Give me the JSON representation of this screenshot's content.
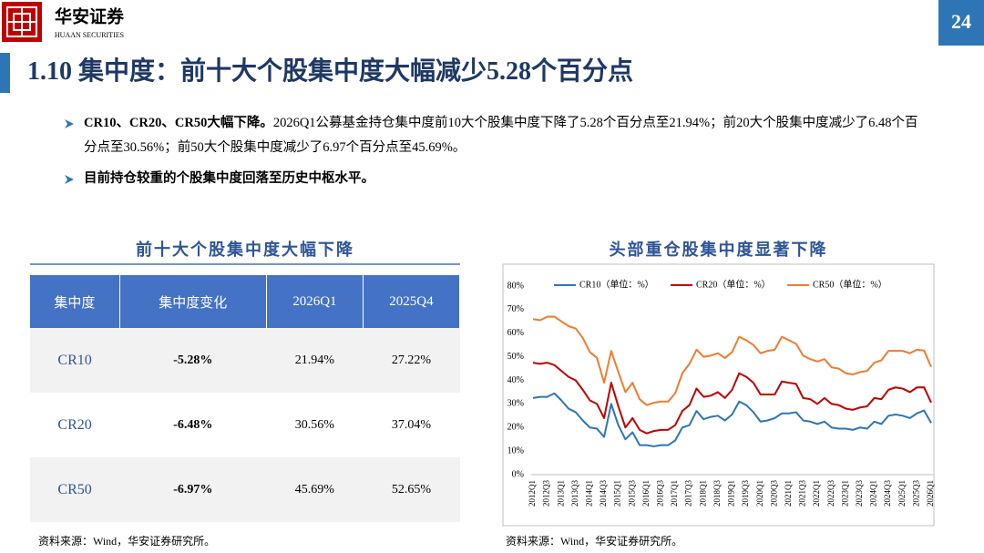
{
  "header": {
    "brand": "华安证券",
    "brand_en": "HUAAN SECURITIES",
    "page_number": "24",
    "title": "1.10 集中度：前十大个股集中度大幅减少5.28个百分点"
  },
  "bullets": [
    {
      "bold": "CR10、CR20、CR50大幅下降。",
      "text": "2026Q1公募基金持仓集中度前10大个股集中度下降了5.28个百分点至21.94%；前20大个股集中度减少了6.48个百分点至30.56%；前50大个股集中度减少了6.97个百分点至45.69%。"
    },
    {
      "bold": "目前持仓较重的个股集中度回落至历史中枢水平。"
    }
  ],
  "left_panel": {
    "title": "前十大个股集中度大幅下降",
    "table": {
      "header": [
        "集中度",
        "集中度变化",
        "2026Q1",
        "2025Q4"
      ],
      "rows": [
        [
          "CR10",
          "-5.28%",
          "21.94%",
          "27.22%"
        ],
        [
          "CR20",
          "-6.48%",
          "30.56%",
          "37.04%"
        ],
        [
          "CR50",
          "-6.97%",
          "45.69%",
          "52.65%"
        ]
      ]
    },
    "source": "资料来源：Wind，华安证券研究所。"
  },
  "right_panel": {
    "title": "头部重仓股集中度显著下降",
    "source": "资料来源：Wind，华安证券研究所。"
  },
  "chart_data": {
    "type": "line",
    "categories": [
      "2012Q1",
      null,
      "2012Q3",
      null,
      "2013Q1",
      null,
      "2013Q3",
      null,
      "2014Q1",
      null,
      "2014Q3",
      null,
      "2015Q1",
      null,
      "2015Q3",
      null,
      "2016Q1",
      null,
      "2016Q3",
      null,
      "2017Q1",
      null,
      "2017Q3",
      null,
      "2018Q1",
      null,
      "2018Q3",
      null,
      "2019Q1",
      null,
      "2019Q3",
      null,
      "2020Q1",
      null,
      "2020Q3",
      null,
      "2021Q1",
      null,
      "2021Q3",
      null,
      "2022Q1",
      null,
      "2022Q3",
      null,
      "2023Q1",
      null,
      "2023Q3",
      null,
      "2024Q1",
      null,
      "2024Q3",
      null,
      "2025Q1",
      null,
      "2025Q3",
      null,
      "2026Q1"
    ],
    "series": [
      {
        "name": "CR10（单位：%）",
        "color": "#2e75b6",
        "values": [
          32.5,
          33,
          33,
          34.5,
          31.5,
          28,
          26.5,
          23,
          20,
          19.5,
          16,
          30,
          21,
          15,
          18,
          12.5,
          12.5,
          12,
          12.5,
          12.5,
          14.5,
          20,
          21,
          27,
          23.5,
          24.5,
          25,
          23,
          25.5,
          31,
          29.5,
          26.5,
          22.5,
          23,
          24,
          26,
          26,
          26.5,
          23,
          22.5,
          21.5,
          22.5,
          20,
          19.5,
          19.5,
          19,
          20,
          19.5,
          22.5,
          21.5,
          25,
          25.5,
          25,
          24,
          26,
          27.22,
          21.94
        ]
      },
      {
        "name": "CR20（单位：%）",
        "color": "#c00000",
        "values": [
          47.5,
          47,
          47.5,
          46.5,
          44,
          41.5,
          40,
          36,
          31.5,
          30,
          24,
          39,
          29,
          20,
          24,
          19,
          17.5,
          18.5,
          19,
          19,
          21,
          27,
          29.5,
          36.5,
          33,
          33.5,
          35,
          32.5,
          36,
          43,
          41.5,
          39,
          34,
          34,
          34,
          39.5,
          39,
          38.5,
          32.5,
          32,
          30,
          32.5,
          30,
          29.5,
          28,
          27.5,
          28.5,
          29,
          32.5,
          32,
          36,
          37,
          36.5,
          35,
          37,
          37.04,
          30.56
        ]
      },
      {
        "name": "CR50（单位：%）",
        "color": "#ed7d31",
        "values": [
          66,
          65.5,
          67,
          67,
          65,
          63,
          62,
          58,
          52,
          49.5,
          39,
          52.5,
          43.5,
          35,
          39,
          32,
          29.5,
          30.5,
          31,
          31,
          34.5,
          43,
          47,
          53,
          50,
          50.5,
          51.5,
          49.5,
          52,
          58.5,
          57,
          55,
          51.5,
          52.5,
          53,
          58.5,
          57,
          55.5,
          50.5,
          49,
          48,
          49,
          45.5,
          45,
          43,
          42.5,
          43.5,
          44,
          47.5,
          48.5,
          52.5,
          52.5,
          52.5,
          51.5,
          53,
          52.65,
          45.69
        ]
      }
    ],
    "ylim": [
      0,
      80
    ],
    "yticks": [
      {
        "value": 0,
        "label": "0%"
      },
      {
        "value": 10,
        "label": "10%"
      },
      {
        "value": 20,
        "label": "20%"
      },
      {
        "value": 30,
        "label": "30%"
      },
      {
        "value": 40,
        "label": "40%"
      },
      {
        "value": 50,
        "label": "50%"
      },
      {
        "value": 60,
        "label": "60%"
      },
      {
        "value": 70,
        "label": "70%"
      },
      {
        "value": 80,
        "label": "80%"
      }
    ],
    "grid": false,
    "legend": "top"
  }
}
